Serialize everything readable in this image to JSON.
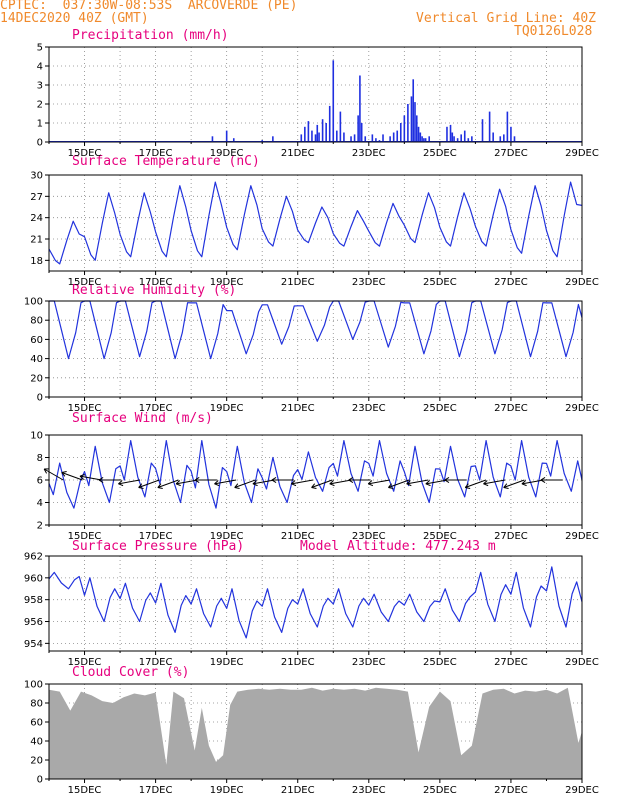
{
  "header": {
    "line1": "CPTEC:  037:30W-08:53S  ARCOVERDE (PE)",
    "line2": "14DEC2020 40Z (GMT)",
    "vgrid": "Vertical Grid Line: 40Z",
    "code": "TQ0126L028"
  },
  "model_altitude": "Model Altitude: 477.243 m",
  "colors": {
    "header": "#f08a2c",
    "title": "#e6007e",
    "line": "#2233dd",
    "bar": "#1f2fe0",
    "cloud": "#a9a9a9",
    "grid": "#888888"
  },
  "chart_data": [
    {
      "id": "precip",
      "type": "bar",
      "title": "Precipitation (mm/h)",
      "xticks": [
        "15DEC",
        "17DEC",
        "19DEC",
        "21DEC",
        "23DEC",
        "25DEC",
        "27DEC",
        "29DEC"
      ],
      "ylim": [
        0,
        5
      ],
      "yticks": [
        0,
        1,
        2,
        3,
        4,
        5
      ],
      "grid": true,
      "x": [
        4.6,
        5.0,
        5.2,
        6.0,
        6.3,
        7.1,
        7.2,
        7.3,
        7.4,
        7.5,
        7.55,
        7.6,
        7.7,
        7.8,
        7.9,
        8.0,
        8.1,
        8.2,
        8.3,
        8.5,
        8.6,
        8.7,
        8.75,
        8.8,
        8.9,
        9.1,
        9.2,
        9.3,
        9.4,
        9.6,
        9.7,
        9.8,
        9.9,
        10.0,
        10.1,
        10.2,
        10.25,
        10.3,
        10.35,
        10.4,
        10.45,
        10.5,
        10.55,
        10.6,
        10.7,
        11.2,
        11.3,
        11.35,
        11.4,
        11.5,
        11.6,
        11.7,
        11.8,
        11.9,
        12.2,
        12.4,
        12.5,
        12.7,
        12.8,
        12.9,
        13.0,
        13.1
      ],
      "values": [
        0.3,
        0.6,
        0.2,
        0.1,
        0.3,
        0.4,
        0.8,
        1.1,
        0.6,
        0.4,
        0.9,
        0.5,
        1.2,
        1.0,
        1.9,
        4.3,
        0.6,
        1.6,
        0.5,
        0.3,
        0.4,
        1.4,
        3.5,
        1.0,
        0.3,
        0.4,
        0.2,
        0.1,
        0.4,
        0.3,
        0.5,
        0.6,
        1.0,
        1.4,
        2.0,
        2.4,
        3.3,
        2.1,
        1.4,
        0.8,
        0.5,
        0.3,
        0.2,
        0.2,
        0.3,
        0.8,
        0.9,
        0.5,
        0.3,
        0.2,
        0.4,
        0.6,
        0.2,
        0.3,
        1.2,
        1.6,
        0.5,
        0.3,
        0.4,
        1.6,
        0.8,
        0.3
      ]
    },
    {
      "id": "temp",
      "type": "line",
      "title": "Surface Temperature (nC)",
      "xticks": [
        "15DEC",
        "17DEC",
        "19DEC",
        "21DEC",
        "23DEC",
        "25DEC",
        "27DEC",
        "29DEC"
      ],
      "ylim": [
        16.5,
        30
      ],
      "yticks": [
        18,
        21,
        24,
        27,
        30
      ],
      "grid": true,
      "min": [
        17.5,
        18.0,
        18.5,
        18.5,
        18.5,
        19.5,
        20.0,
        20.5,
        20.0,
        20.0,
        20.5,
        20.0,
        20.0,
        19.0,
        18.5,
        19.0
      ],
      "max": [
        23.5,
        27.5,
        27.5,
        28.5,
        29.0,
        28.5,
        27.0,
        25.5,
        25.0,
        26.0,
        27.5,
        27.5,
        28.0,
        28.5,
        29.0,
        29.0
      ]
    },
    {
      "id": "rh",
      "type": "line",
      "title": "Relative Humidity (%)",
      "xticks": [
        "15DEC",
        "17DEC",
        "19DEC",
        "21DEC",
        "23DEC",
        "25DEC",
        "27DEC",
        "29DEC"
      ],
      "ylim": [
        0,
        100
      ],
      "yticks": [
        0,
        20,
        40,
        60,
        80,
        100
      ],
      "grid": true,
      "min": [
        40,
        40,
        42,
        40,
        40,
        45,
        55,
        58,
        60,
        52,
        45,
        42,
        45,
        42,
        42,
        42,
        42
      ],
      "max": [
        100,
        100,
        100,
        100,
        98,
        90,
        96,
        95,
        100,
        100,
        98,
        100,
        100,
        100,
        98,
        100,
        100
      ]
    },
    {
      "id": "wind",
      "type": "line",
      "title": "Surface Wind (m/s)",
      "xticks": [
        "15DEC",
        "17DEC",
        "19DEC",
        "21DEC",
        "23DEC",
        "25DEC",
        "27DEC",
        "29DEC"
      ],
      "ylim": [
        2,
        10
      ],
      "yticks": [
        2,
        4,
        6,
        8,
        10
      ],
      "grid": true,
      "min": [
        3.5,
        4.0,
        4.5,
        4.0,
        3.5,
        4.0,
        4.0,
        5.0,
        5.0,
        5.0,
        4.0,
        4.5,
        4.5,
        4.5,
        5.0,
        5.0,
        4.5
      ],
      "max": [
        7.5,
        9.0,
        9.5,
        9.5,
        9.5,
        9.0,
        8.0,
        8.5,
        9.5,
        9.5,
        9.0,
        9.0,
        9.5,
        9.5,
        9.5,
        9.5,
        9.5
      ],
      "arrows_deg": [
        150,
        160,
        170,
        180,
        190,
        200,
        200,
        190,
        180,
        190,
        200,
        190,
        180,
        190,
        200,
        190,
        180,
        190,
        200,
        190,
        190,
        180,
        200,
        190,
        200,
        190,
        180
      ]
    },
    {
      "id": "pres",
      "type": "line",
      "title": "Surface Pressure (hPa)",
      "xticks": [
        "15DEC",
        "17DEC",
        "19DEC",
        "21DEC",
        "23DEC",
        "25DEC",
        "27DEC",
        "29DEC"
      ],
      "ylim": [
        953.3,
        962
      ],
      "yticks": [
        954,
        956,
        958,
        960,
        962
      ],
      "grid": true,
      "min": [
        959.0,
        956.0,
        956.0,
        955.0,
        955.5,
        954.5,
        955.0,
        955.5,
        955.5,
        956.0,
        956.0,
        956.0,
        956.0,
        955.5,
        955.5,
        955.5,
        954.5
      ],
      "max": [
        960.5,
        960.0,
        959.5,
        959.5,
        959.0,
        959.0,
        959.0,
        959.0,
        959.0,
        958.5,
        958.5,
        959.0,
        960.5,
        960.5,
        961.0,
        960.0,
        959.5
      ]
    },
    {
      "id": "cloud",
      "type": "area",
      "title": "Cloud Cover (%)",
      "xticks": [
        "15DEC",
        "17DEC",
        "19DEC",
        "21DEC",
        "23DEC",
        "25DEC",
        "27DEC",
        "29DEC"
      ],
      "ylim": [
        0,
        100
      ],
      "yticks": [
        0,
        20,
        40,
        60,
        80,
        100
      ],
      "grid": true,
      "x": [
        0.0,
        0.3,
        0.6,
        0.9,
        1.2,
        1.5,
        1.8,
        2.1,
        2.4,
        2.7,
        3.0,
        3.3,
        3.5,
        3.8,
        4.1,
        4.3,
        4.5,
        4.7,
        4.9,
        5.1,
        5.3,
        5.6,
        5.9,
        6.2,
        6.5,
        6.8,
        7.1,
        7.4,
        7.7,
        8.0,
        8.3,
        8.6,
        8.9,
        9.2,
        9.5,
        9.8,
        10.1,
        10.4,
        10.7,
        11.0,
        11.3,
        11.6,
        11.9,
        12.2,
        12.5,
        12.8,
        13.1,
        13.4,
        13.7,
        14.0,
        14.3,
        14.6,
        14.9,
        15.0
      ],
      "values": [
        94,
        92,
        72,
        92,
        88,
        82,
        80,
        86,
        90,
        88,
        91,
        15,
        92,
        85,
        30,
        75,
        35,
        18,
        25,
        78,
        92,
        94,
        95,
        94,
        95,
        94,
        94,
        96,
        93,
        95,
        94,
        95,
        93,
        96,
        95,
        94,
        92,
        28,
        76,
        92,
        82,
        25,
        35,
        90,
        94,
        95,
        90,
        93,
        92,
        94,
        90,
        96,
        38,
        50
      ]
    }
  ]
}
